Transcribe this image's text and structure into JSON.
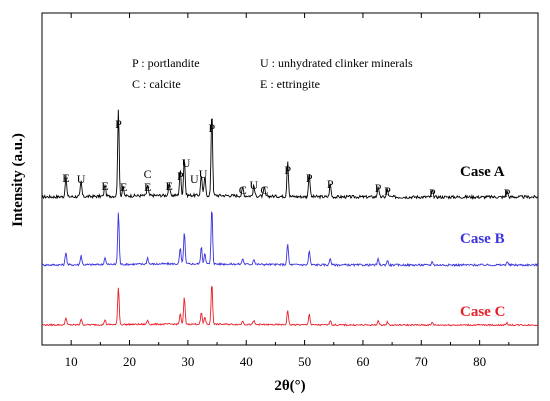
{
  "chart_data": {
    "type": "line",
    "xlabel": "2θ(°)",
    "ylabel": "Intensity (a.u.)",
    "xlim": [
      5,
      90
    ],
    "x_ticks": [
      10,
      20,
      30,
      40,
      50,
      60,
      70,
      80
    ],
    "grid": false,
    "legend_entries": [
      "P : portlandite",
      "U : unhydrated clinker minerals",
      "C : calcite",
      "E : ettringite"
    ],
    "series": [
      {
        "name": "Case A",
        "color": "#000000",
        "peaks": [
          [
            9.1,
            0.24
          ],
          [
            11.7,
            0.18
          ],
          [
            15.8,
            0.14
          ],
          [
            18.1,
            1.0
          ],
          [
            18.9,
            0.1
          ],
          [
            23.1,
            0.12
          ],
          [
            26.8,
            0.13
          ],
          [
            28.7,
            0.3
          ],
          [
            29.4,
            0.45
          ],
          [
            32.3,
            0.25
          ],
          [
            32.9,
            0.22
          ],
          [
            34.1,
            1.0
          ],
          [
            39.4,
            0.1
          ],
          [
            41.3,
            0.12
          ],
          [
            43.1,
            0.1
          ],
          [
            47.1,
            0.42
          ],
          [
            50.8,
            0.28
          ],
          [
            54.4,
            0.15
          ],
          [
            62.6,
            0.12
          ],
          [
            64.2,
            0.09
          ],
          [
            71.9,
            0.07
          ],
          [
            84.7,
            0.07
          ]
        ]
      },
      {
        "name": "Case B",
        "color": "#3a33dd",
        "peaks": [
          [
            9.1,
            0.23
          ],
          [
            11.7,
            0.17
          ],
          [
            15.8,
            0.13
          ],
          [
            18.1,
            0.92
          ],
          [
            23.1,
            0.11
          ],
          [
            28.7,
            0.28
          ],
          [
            29.4,
            0.56
          ],
          [
            32.3,
            0.3
          ],
          [
            32.9,
            0.2
          ],
          [
            34.1,
            1.0
          ],
          [
            39.4,
            0.1
          ],
          [
            41.3,
            0.1
          ],
          [
            47.1,
            0.37
          ],
          [
            50.8,
            0.25
          ],
          [
            54.4,
            0.12
          ],
          [
            62.6,
            0.1
          ],
          [
            64.2,
            0.08
          ],
          [
            71.9,
            0.06
          ],
          [
            84.7,
            0.06
          ]
        ]
      },
      {
        "name": "Case C",
        "color": "#e8202a",
        "peaks": [
          [
            9.1,
            0.18
          ],
          [
            11.7,
            0.14
          ],
          [
            15.8,
            0.12
          ],
          [
            18.1,
            0.9
          ],
          [
            23.1,
            0.1
          ],
          [
            28.7,
            0.25
          ],
          [
            29.4,
            0.65
          ],
          [
            32.3,
            0.28
          ],
          [
            32.9,
            0.18
          ],
          [
            34.1,
            1.0
          ],
          [
            39.4,
            0.09
          ],
          [
            41.3,
            0.09
          ],
          [
            47.1,
            0.35
          ],
          [
            50.8,
            0.27
          ],
          [
            54.4,
            0.12
          ],
          [
            62.6,
            0.1
          ],
          [
            64.2,
            0.07
          ],
          [
            71.9,
            0.06
          ],
          [
            84.7,
            0.05
          ]
        ]
      }
    ],
    "peak_labels": [
      {
        "label": "E",
        "x": 9.1
      },
      {
        "label": "U",
        "x": 11.7
      },
      {
        "label": "E",
        "x": 15.8
      },
      {
        "label": "P",
        "x": 18.1
      },
      {
        "label": "E",
        "x": 19.0
      },
      {
        "label": "C",
        "x": 23.1
      },
      {
        "label": "E",
        "x": 23.1
      },
      {
        "label": "E",
        "x": 26.8
      },
      {
        "label": "P",
        "x": 28.7
      },
      {
        "label": "U",
        "x": 29.7
      },
      {
        "label": "U",
        "x": 31.1
      },
      {
        "label": "U",
        "x": 32.6
      },
      {
        "label": "P",
        "x": 34.1
      },
      {
        "label": "C",
        "x": 39.4
      },
      {
        "label": "U",
        "x": 41.3
      },
      {
        "label": "C",
        "x": 43.1
      },
      {
        "label": "P",
        "x": 47.1
      },
      {
        "label": "P",
        "x": 50.8
      },
      {
        "label": "P",
        "x": 54.4
      },
      {
        "label": "P",
        "x": 62.6
      },
      {
        "label": "P",
        "x": 64.2
      },
      {
        "label": "P",
        "x": 71.9
      },
      {
        "label": "P",
        "x": 84.7
      }
    ]
  }
}
